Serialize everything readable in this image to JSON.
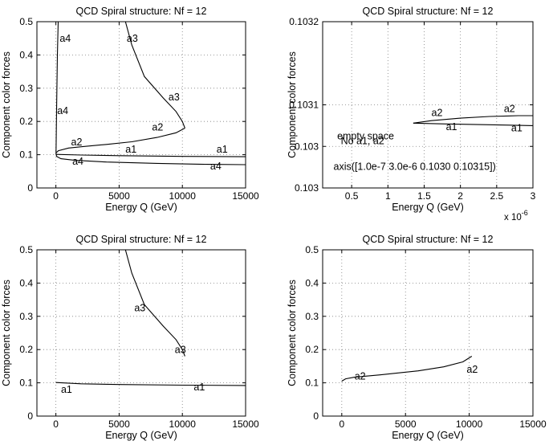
{
  "chart_data": [
    {
      "type": "line",
      "title": "QCD Spiral structure: Nf = 12",
      "xlabel": "Energy Q (GeV)",
      "ylabel": "Component color forces",
      "xlim": [
        -1500,
        15000
      ],
      "ylim": [
        0,
        0.5
      ],
      "xticks": [
        0,
        5000,
        10000,
        15000
      ],
      "xtick_labels": [
        "0",
        "5000",
        "10000",
        "15000"
      ],
      "yticks": [
        0,
        0.1,
        0.2,
        0.3,
        0.4,
        0.5
      ],
      "ytick_labels": [
        "0",
        "0.1",
        "0.2",
        "0.3",
        "0.4",
        "0.5"
      ],
      "grid": true,
      "series": [
        {
          "name": "a3",
          "x": [
            5500,
            6000,
            7000,
            8500,
            9500,
            10000,
            10200
          ],
          "y": [
            0.5,
            0.43,
            0.335,
            0.27,
            0.23,
            0.2,
            0.18
          ]
        },
        {
          "name": "a2",
          "x": [
            0,
            200,
            1000,
            2000,
            4000,
            6000,
            8000,
            9500,
            10200
          ],
          "y": [
            0.105,
            0.112,
            0.12,
            0.124,
            0.131,
            0.139,
            0.152,
            0.166,
            0.18
          ]
        },
        {
          "name": "a1",
          "x": [
            0,
            2000,
            5000,
            10000,
            15000
          ],
          "y": [
            0.101,
            0.099,
            0.097,
            0.095,
            0.094
          ]
        },
        {
          "name": "a4",
          "x": [
            180,
            120,
            80,
            40,
            20,
            10,
            20,
            60,
            400,
            1500,
            4000,
            8000,
            12000,
            15000
          ],
          "y": [
            0.5,
            0.4,
            0.3,
            0.2,
            0.14,
            0.105,
            0.1,
            0.095,
            0.088,
            0.083,
            0.078,
            0.074,
            0.071,
            0.07
          ]
        }
      ],
      "annotations": [
        {
          "text": "a4",
          "x": 300,
          "y": 0.44
        },
        {
          "text": "a3",
          "x": 5600,
          "y": 0.44
        },
        {
          "text": "a3",
          "x": 8900,
          "y": 0.263
        },
        {
          "text": "a4",
          "x": 100,
          "y": 0.222
        },
        {
          "text": "a2",
          "x": 7600,
          "y": 0.173
        },
        {
          "text": "a2",
          "x": 1200,
          "y": 0.128
        },
        {
          "text": "a1",
          "x": 5500,
          "y": 0.106
        },
        {
          "text": "a1",
          "x": 12700,
          "y": 0.106
        },
        {
          "text": "a4",
          "x": 1300,
          "y": 0.07
        },
        {
          "text": "a4",
          "x": 12200,
          "y": 0.055
        }
      ]
    },
    {
      "type": "line",
      "title": "QCD Spiral structure: Nf = 12",
      "xlabel": "Energy Q (GeV)",
      "ylabel": "Component color forces",
      "x_multiplier": "x 10",
      "x_exponent": "-6",
      "xlim": [
        0.1,
        3.0
      ],
      "ylim": [
        0.103,
        0.1032
      ],
      "xticks": [
        0.5,
        1,
        1.5,
        2,
        2.5,
        3
      ],
      "xtick_labels": [
        "0.5",
        "1",
        "1.5",
        "2",
        "2.5",
        "3"
      ],
      "yticks": [
        0.103,
        0.1031,
        0.1032
      ],
      "ytick_labels": [
        "0.103",
        "0.1031",
        "0.1032"
      ],
      "ytick_labels_actual": [
        "0.103",
        "0.103",
        "0.1031",
        "0.1032"
      ],
      "ytick_values_actual": [
        0.103,
        0.10305,
        0.1031,
        0.1032
      ],
      "grid": true,
      "series": [
        {
          "name": "a2",
          "x": [
            1.35,
            1.6,
            2.0,
            2.4,
            2.8,
            3.0
          ],
          "y": [
            0.103078,
            0.103081,
            0.103084,
            0.103086,
            0.103087,
            0.103087
          ]
        },
        {
          "name": "a1",
          "x": [
            1.35,
            1.8,
            2.4,
            3.0
          ],
          "y": [
            0.103078,
            0.103077,
            0.103076,
            0.103075
          ]
        }
      ],
      "annotations": [
        {
          "text": "a2",
          "x": 1.6,
          "y": 0.1030865
        },
        {
          "text": "a2",
          "x": 2.6,
          "y": 0.1030915
        },
        {
          "text": "a1",
          "x": 1.8,
          "y": 0.1030695
        },
        {
          "text": "a1",
          "x": 2.7,
          "y": 0.103068
        },
        {
          "text": "empty space",
          "x": 0.3,
          "y": 0.1030585
        },
        {
          "text": "No a1, a2",
          "x": 0.35,
          "y": 0.1030525
        },
        {
          "text": "axis([1.0e-7 3.0e-6 0.1030 0.10315])",
          "x": 0.25,
          "y": 0.1030215
        }
      ]
    },
    {
      "type": "line",
      "title": "QCD Spiral structure: Nf = 12",
      "xlabel": "Energy Q (GeV)",
      "ylabel": "Component color forces",
      "xlim": [
        -1500,
        15000
      ],
      "ylim": [
        0,
        0.5
      ],
      "xticks": [
        0,
        5000,
        10000,
        15000
      ],
      "xtick_labels": [
        "0",
        "5000",
        "10000",
        "15000"
      ],
      "yticks": [
        0,
        0.1,
        0.2,
        0.3,
        0.4,
        0.5
      ],
      "ytick_labels": [
        "0",
        "0.1",
        "0.2",
        "0.3",
        "0.4",
        "0.5"
      ],
      "grid": true,
      "series": [
        {
          "name": "a3",
          "x": [
            5500,
            6000,
            7000,
            8500,
            9500,
            10000,
            10200
          ],
          "y": [
            0.5,
            0.43,
            0.335,
            0.27,
            0.23,
            0.2,
            0.18
          ]
        },
        {
          "name": "a1",
          "x": [
            0,
            2000,
            5000,
            10000,
            15000
          ],
          "y": [
            0.101,
            0.097,
            0.095,
            0.093,
            0.092
          ]
        }
      ],
      "annotations": [
        {
          "text": "a3",
          "x": 6200,
          "y": 0.315
        },
        {
          "text": "a3",
          "x": 9400,
          "y": 0.19
        },
        {
          "text": "a1",
          "x": 400,
          "y": 0.07
        },
        {
          "text": "a1",
          "x": 10900,
          "y": 0.077
        }
      ]
    },
    {
      "type": "line",
      "title": "QCD Spiral structure: Nf = 12",
      "xlabel": "Energy Q (GeV)",
      "ylabel": "Component color forces",
      "xlim": [
        -1500,
        15000
      ],
      "ylim": [
        0,
        0.5
      ],
      "xticks": [
        0,
        5000,
        10000,
        15000
      ],
      "xtick_labels": [
        "0",
        "5000",
        "10000",
        "15000"
      ],
      "yticks": [
        0,
        0.1,
        0.2,
        0.3,
        0.4,
        0.5
      ],
      "ytick_labels": [
        "0",
        "0.1",
        "0.2",
        "0.3",
        "0.4",
        "0.5"
      ],
      "grid": true,
      "series": [
        {
          "name": "a2",
          "x": [
            0,
            300,
            1000,
            3000,
            6000,
            8000,
            9500,
            10200
          ],
          "y": [
            0.105,
            0.112,
            0.117,
            0.124,
            0.136,
            0.148,
            0.163,
            0.18
          ]
        }
      ],
      "annotations": [
        {
          "text": "a2",
          "x": 1000,
          "y": 0.11
        },
        {
          "text": "a2",
          "x": 9800,
          "y": 0.13
        }
      ]
    }
  ]
}
